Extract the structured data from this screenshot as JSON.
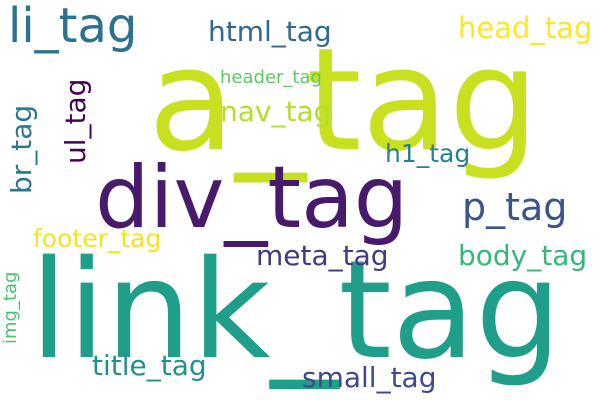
{
  "words": [
    {
      "text": "a_tag",
      "color": "#c8e020",
      "orientation": "horizontal"
    },
    {
      "text": "link_tag",
      "color": "#1f9e89",
      "orientation": "horizontal"
    },
    {
      "text": "div_tag",
      "color": "#481a6c",
      "orientation": "horizontal"
    },
    {
      "text": "li_tag",
      "color": "#2c728e",
      "orientation": "horizontal"
    },
    {
      "text": "p_tag",
      "color": "#3b528b",
      "orientation": "horizontal"
    },
    {
      "text": "head_tag",
      "color": "#fde725",
      "orientation": "horizontal"
    },
    {
      "text": "html_tag",
      "color": "#31688e",
      "orientation": "horizontal"
    },
    {
      "text": "header_tag",
      "color": "#5ec962",
      "orientation": "horizontal"
    },
    {
      "text": "nav_tag",
      "color": "#b5de2b",
      "orientation": "horizontal"
    },
    {
      "text": "h1_tag",
      "color": "#26828e",
      "orientation": "horizontal"
    },
    {
      "text": "footer_tag",
      "color": "#f0e51f",
      "orientation": "horizontal"
    },
    {
      "text": "meta_tag",
      "color": "#443a83",
      "orientation": "horizontal"
    },
    {
      "text": "body_tag",
      "color": "#35b779",
      "orientation": "horizontal"
    },
    {
      "text": "title_tag",
      "color": "#21918c",
      "orientation": "horizontal"
    },
    {
      "text": "small_tag",
      "color": "#3e4a89",
      "orientation": "horizontal"
    },
    {
      "text": "ul_tag",
      "color": "#440154",
      "orientation": "vertical"
    },
    {
      "text": "br_tag",
      "color": "#2a788e",
      "orientation": "vertical"
    },
    {
      "text": "img_tag",
      "color": "#4ac16d",
      "orientation": "vertical"
    }
  ]
}
